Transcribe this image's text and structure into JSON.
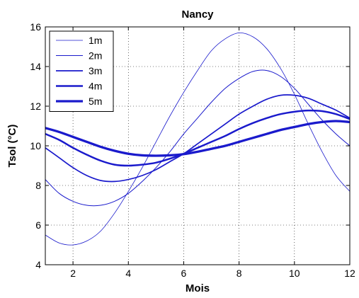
{
  "chart_data": {
    "type": "line",
    "title": "Nancy",
    "xlabel": "Mois",
    "ylabel": "Tsol (°C)",
    "xlim": [
      1,
      12
    ],
    "ylim": [
      4,
      16
    ],
    "xticks": [
      2,
      4,
      6,
      8,
      10,
      12
    ],
    "yticks": [
      4,
      6,
      8,
      10,
      12,
      14,
      16
    ],
    "grid": true,
    "legend_position": "top-left",
    "line_color": "#1a1acc",
    "series": [
      {
        "name": "1m",
        "width_rank": 1,
        "x": [
          1,
          1.5,
          2,
          2.5,
          3,
          3.5,
          4,
          4.5,
          5,
          5.5,
          6,
          6.5,
          7,
          7.5,
          8,
          8.5,
          9,
          9.5,
          10,
          10.5,
          11,
          11.5,
          12
        ],
        "y": [
          5.5,
          5.1,
          5.0,
          5.2,
          5.7,
          6.6,
          7.7,
          8.9,
          10.2,
          11.5,
          12.7,
          13.8,
          14.8,
          15.4,
          15.7,
          15.5,
          14.9,
          13.9,
          12.6,
          11.1,
          9.7,
          8.5,
          7.7
        ]
      },
      {
        "name": "2m",
        "width_rank": 2,
        "x": [
          1,
          1.5,
          2,
          2.5,
          3,
          3.5,
          4,
          4.5,
          5,
          5.5,
          6,
          6.5,
          7,
          7.5,
          8,
          8.5,
          9,
          9.5,
          10,
          10.5,
          11,
          11.5,
          12
        ],
        "y": [
          8.3,
          7.6,
          7.2,
          7.0,
          7.0,
          7.2,
          7.6,
          8.2,
          8.9,
          9.7,
          10.6,
          11.4,
          12.2,
          12.9,
          13.4,
          13.75,
          13.8,
          13.5,
          12.9,
          12.1,
          11.3,
          10.6,
          10.0
        ]
      },
      {
        "name": "3m",
        "width_rank": 3,
        "x": [
          1,
          1.5,
          2,
          2.5,
          3,
          3.5,
          4,
          4.5,
          5,
          5.5,
          6,
          6.5,
          7,
          7.5,
          8,
          8.5,
          9,
          9.5,
          10,
          10.5,
          11,
          11.5,
          12
        ],
        "y": [
          9.9,
          9.4,
          8.9,
          8.5,
          8.25,
          8.2,
          8.3,
          8.5,
          8.8,
          9.2,
          9.6,
          10.1,
          10.6,
          11.1,
          11.6,
          12.0,
          12.35,
          12.55,
          12.55,
          12.4,
          12.1,
          11.8,
          11.4
        ]
      },
      {
        "name": "4m",
        "width_rank": 4,
        "x": [
          1,
          1.5,
          2,
          2.5,
          3,
          3.5,
          4,
          4.5,
          5,
          5.5,
          6,
          6.5,
          7,
          7.5,
          8,
          8.5,
          9,
          9.5,
          10,
          10.5,
          11,
          11.5,
          12
        ],
        "y": [
          10.6,
          10.3,
          9.9,
          9.55,
          9.25,
          9.05,
          9.0,
          9.05,
          9.15,
          9.35,
          9.6,
          9.9,
          10.2,
          10.5,
          10.85,
          11.15,
          11.4,
          11.6,
          11.72,
          11.78,
          11.75,
          11.6,
          11.35
        ]
      },
      {
        "name": "5m",
        "width_rank": 5,
        "x": [
          1,
          1.5,
          2,
          2.5,
          3,
          3.5,
          4,
          4.5,
          5,
          5.5,
          6,
          6.5,
          7,
          7.5,
          8,
          8.5,
          9,
          9.5,
          10,
          10.5,
          11,
          11.5,
          12
        ],
        "y": [
          10.9,
          10.7,
          10.45,
          10.2,
          9.95,
          9.75,
          9.6,
          9.52,
          9.5,
          9.52,
          9.58,
          9.7,
          9.85,
          10.0,
          10.2,
          10.4,
          10.6,
          10.8,
          10.95,
          11.1,
          11.2,
          11.25,
          11.2
        ]
      }
    ]
  }
}
